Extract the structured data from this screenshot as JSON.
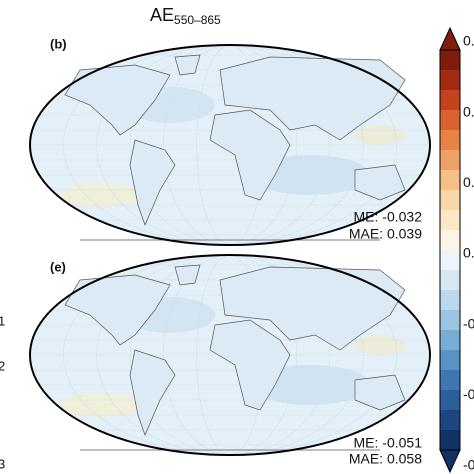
{
  "title": {
    "base": "AE",
    "subscript": "550–865"
  },
  "panels": [
    {
      "label": "(b)",
      "me": "ME: -0.032",
      "mae": "MAE: 0.039"
    },
    {
      "label": "(e)",
      "me": "ME: -0.051",
      "mae": "MAE: 0.058"
    }
  ],
  "colorbar": {
    "tick_labels": [
      "0.",
      "0.",
      "0.",
      "0.",
      "-0",
      "-0",
      "-0"
    ]
  },
  "left_fragments": [
    "1",
    "2",
    "3"
  ]
}
